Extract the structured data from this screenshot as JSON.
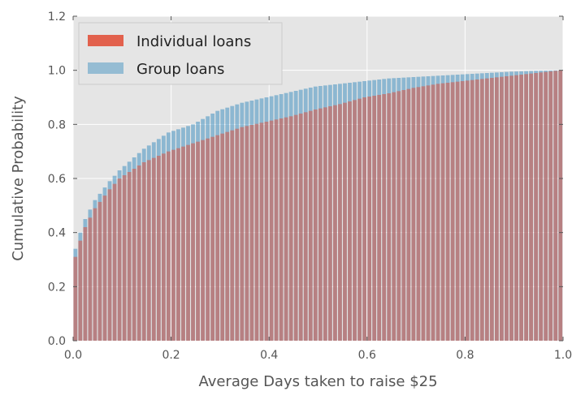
{
  "chart_data": {
    "type": "bar",
    "style": "cumulative-histogram-overlay",
    "title": "",
    "xlabel": "Average Days taken to raise $25",
    "ylabel": "Cumulative Probability",
    "xlim": [
      0.0,
      1.0
    ],
    "ylim": [
      0.0,
      1.2
    ],
    "xticks": [
      "0.0",
      "0.2",
      "0.4",
      "0.6",
      "0.8",
      "1.0"
    ],
    "yticks": [
      "0.0",
      "0.2",
      "0.4",
      "0.6",
      "0.8",
      "1.0",
      "1.2"
    ],
    "grid": true,
    "background_color": "#e5e5e5",
    "legend_position": "top-left",
    "bins": 100,
    "bin_range": [
      0.0,
      1.0
    ],
    "series": [
      {
        "name": "Individual loans",
        "color": "#e24a33",
        "curve": [
          [
            0.0,
            0.21
          ],
          [
            0.01,
            0.31
          ],
          [
            0.02,
            0.37
          ],
          [
            0.03,
            0.42
          ],
          [
            0.05,
            0.49
          ],
          [
            0.08,
            0.56
          ],
          [
            0.1,
            0.6
          ],
          [
            0.15,
            0.66
          ],
          [
            0.2,
            0.7
          ],
          [
            0.25,
            0.73
          ],
          [
            0.3,
            0.76
          ],
          [
            0.35,
            0.79
          ],
          [
            0.4,
            0.81
          ],
          [
            0.45,
            0.83
          ],
          [
            0.5,
            0.855
          ],
          [
            0.55,
            0.875
          ],
          [
            0.6,
            0.9
          ],
          [
            0.65,
            0.915
          ],
          [
            0.7,
            0.935
          ],
          [
            0.75,
            0.95
          ],
          [
            0.8,
            0.96
          ],
          [
            0.85,
            0.97
          ],
          [
            0.9,
            0.98
          ],
          [
            0.95,
            0.99
          ],
          [
            1.0,
            1.0
          ]
        ]
      },
      {
        "name": "Group loans",
        "color": "#348abd",
        "curve": [
          [
            0.0,
            0.25
          ],
          [
            0.01,
            0.34
          ],
          [
            0.02,
            0.4
          ],
          [
            0.03,
            0.45
          ],
          [
            0.05,
            0.52
          ],
          [
            0.08,
            0.59
          ],
          [
            0.1,
            0.63
          ],
          [
            0.15,
            0.71
          ],
          [
            0.2,
            0.77
          ],
          [
            0.25,
            0.8
          ],
          [
            0.3,
            0.85
          ],
          [
            0.35,
            0.88
          ],
          [
            0.4,
            0.9
          ],
          [
            0.45,
            0.92
          ],
          [
            0.5,
            0.94
          ],
          [
            0.55,
            0.95
          ],
          [
            0.6,
            0.96
          ],
          [
            0.65,
            0.97
          ],
          [
            0.7,
            0.975
          ],
          [
            0.75,
            0.98
          ],
          [
            0.8,
            0.985
          ],
          [
            0.85,
            0.99
          ],
          [
            0.9,
            0.995
          ],
          [
            0.95,
            0.998
          ],
          [
            1.0,
            1.0
          ]
        ]
      }
    ]
  }
}
